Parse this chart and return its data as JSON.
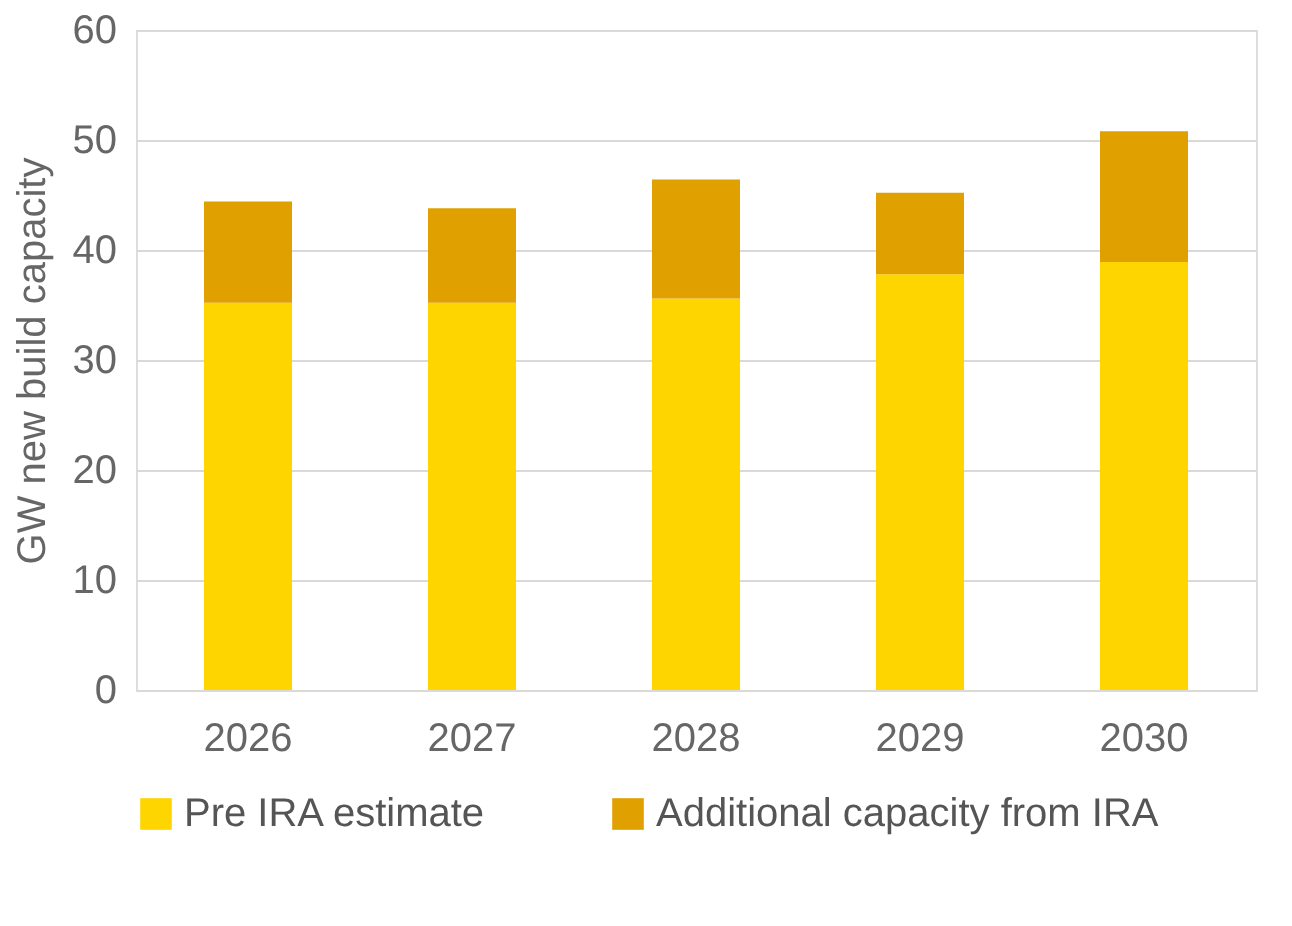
{
  "chart_data": {
    "type": "bar",
    "stacked": true,
    "ylabel": "GW new build capacity",
    "categories": [
      "2026",
      "2027",
      "2028",
      "2029",
      "2030"
    ],
    "series": [
      {
        "name": "Pre IRA estimate",
        "color": "#ffd500",
        "values": [
          35.2,
          35.2,
          35.6,
          37.8,
          38.9
        ]
      },
      {
        "name": "Additional capacity from IRA",
        "color": "#e0a000",
        "values": [
          9.2,
          8.6,
          10.8,
          7.4,
          11.9
        ]
      }
    ],
    "ylim": [
      0,
      60
    ],
    "yticks": [
      0,
      10,
      20,
      30,
      40,
      50,
      60
    ],
    "grid": "y",
    "legend": "bottom"
  }
}
